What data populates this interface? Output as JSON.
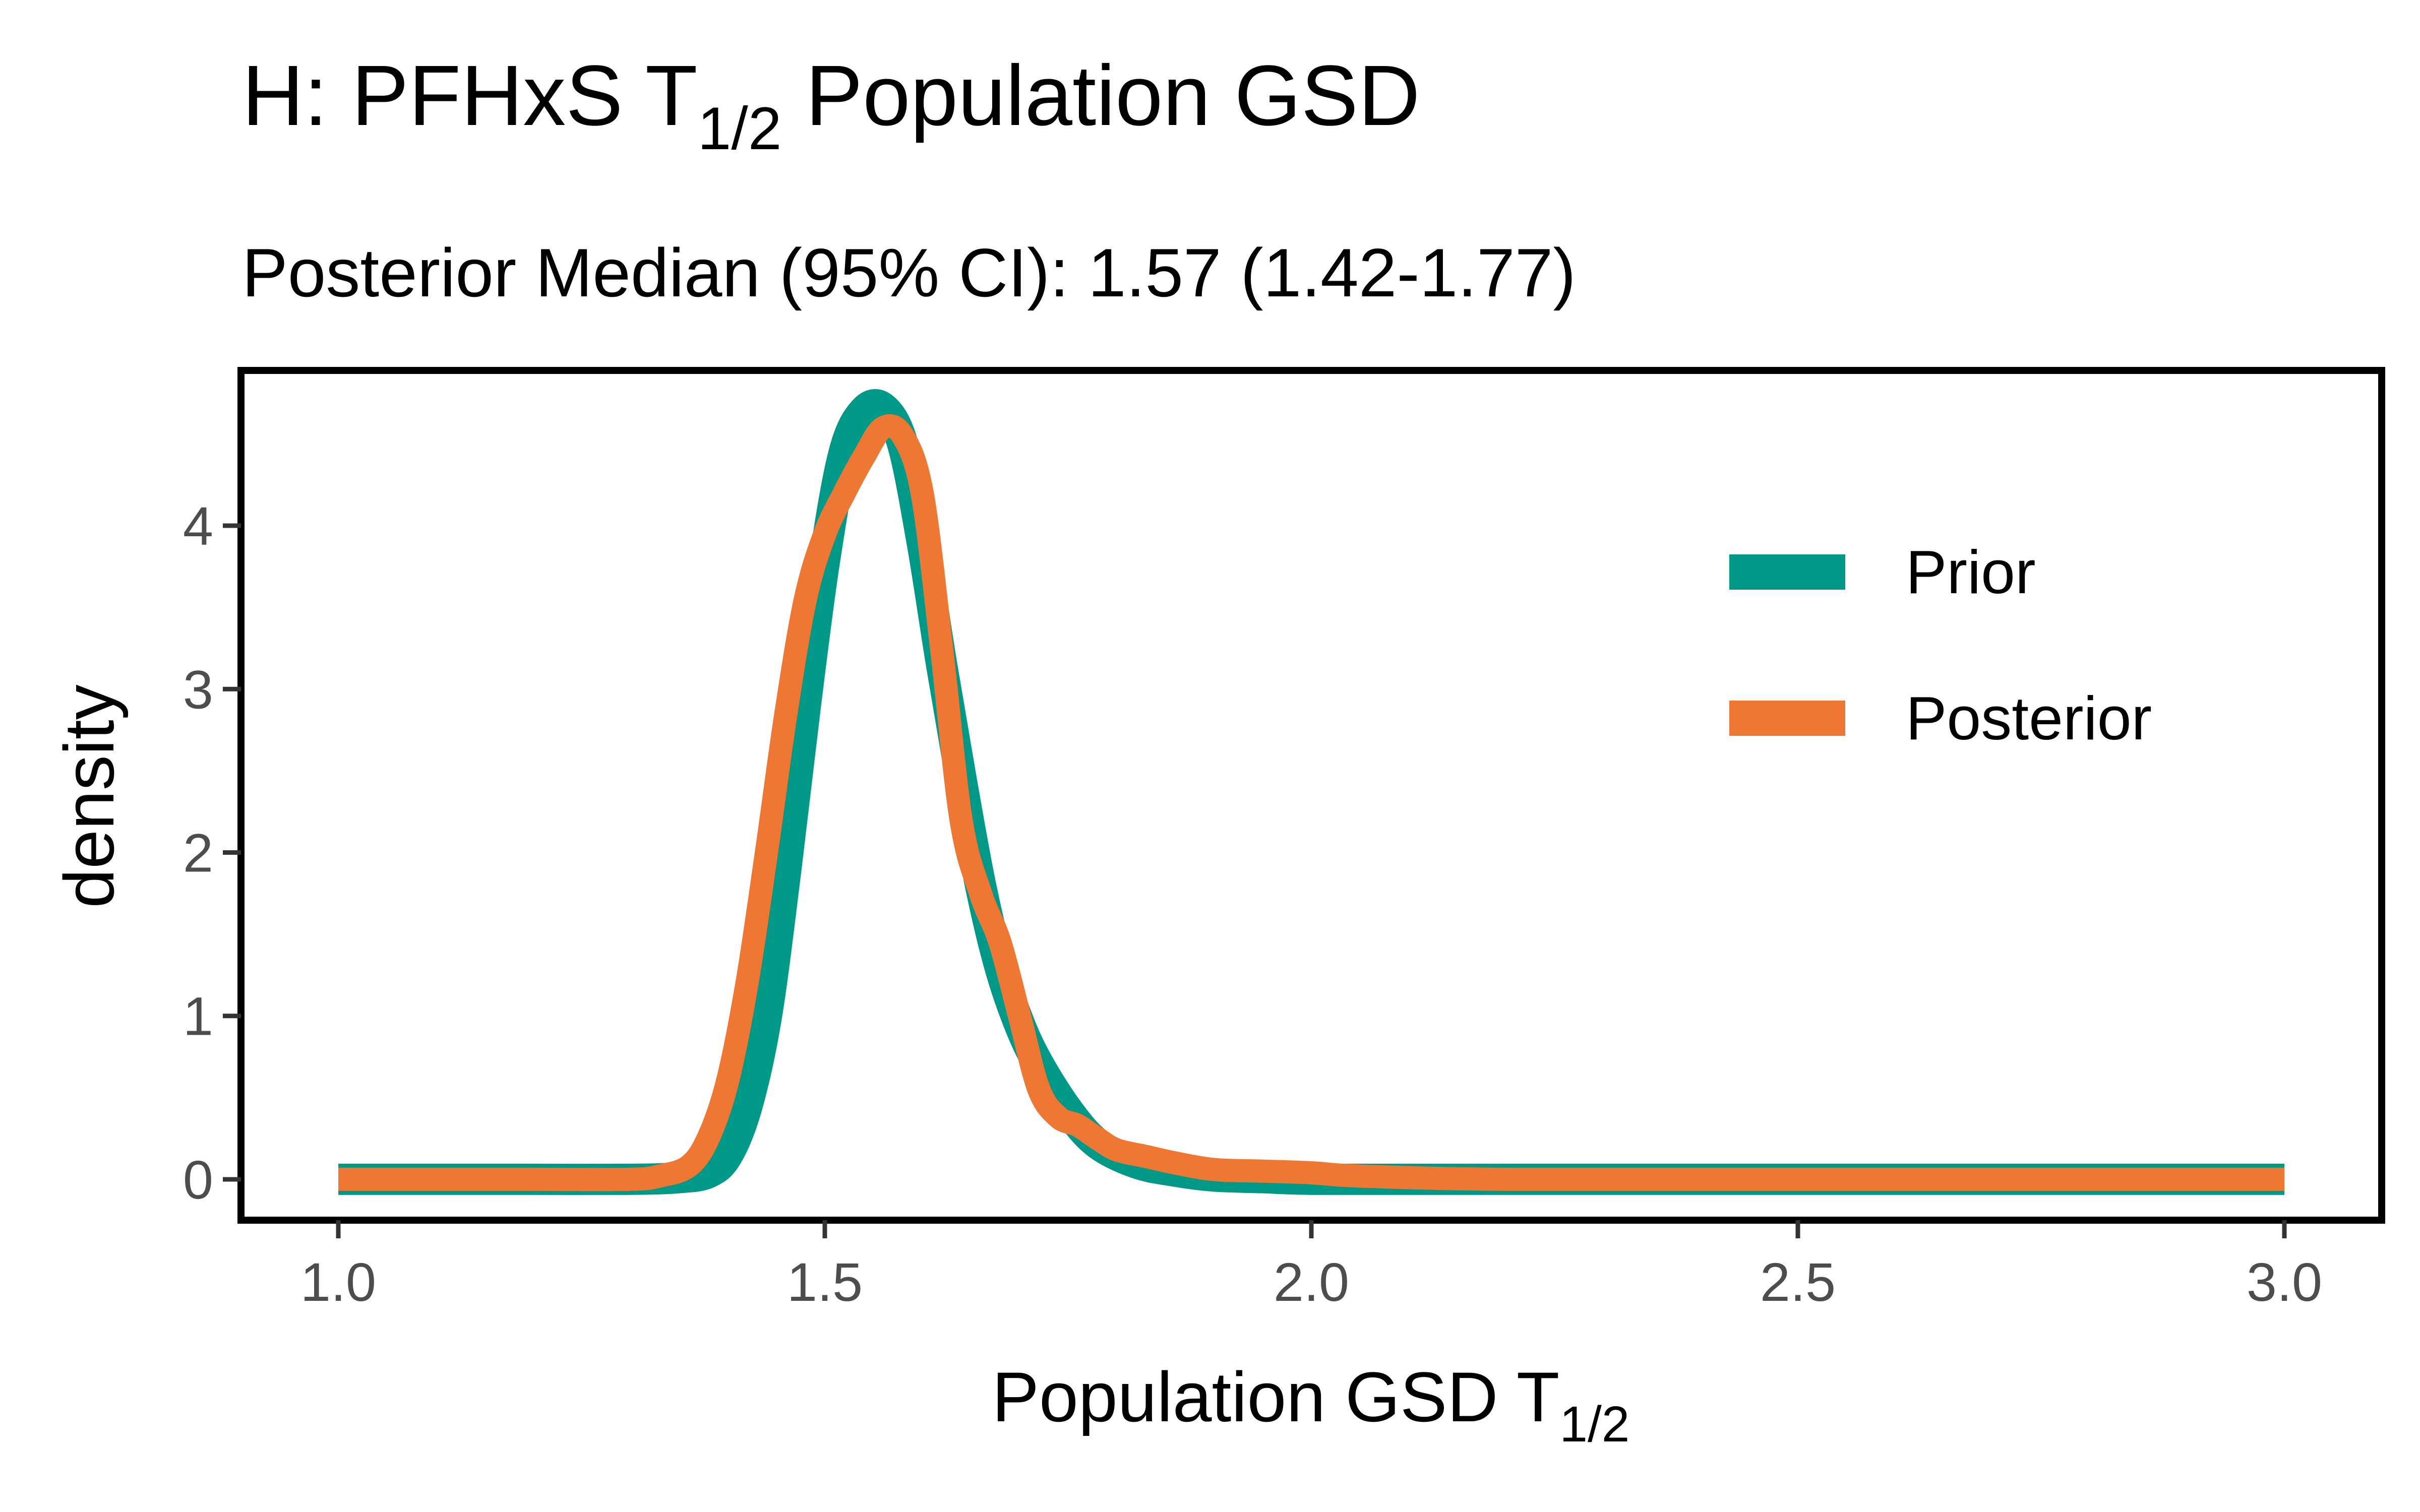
{
  "header": {
    "title_main": "H: PFHxS T",
    "title_sub": "1/2",
    "title_rest": " Population GSD",
    "subtitle": "Posterior Median (95% CI): 1.57 (1.42-1.77)"
  },
  "chart_data": {
    "type": "line",
    "title": "H: PFHxS T1/2 Population GSD",
    "subtitle": "Posterior Median (95% CI): 1.57 (1.42-1.77)",
    "xlabel": "Population GSD T1/2",
    "xlabel_parts": {
      "main": "Population GSD T",
      "sub": "1/2"
    },
    "ylabel": "density",
    "xlim": [
      0.9,
      3.1
    ],
    "ylim": [
      -0.25,
      4.95
    ],
    "x_ticks": [
      1.0,
      1.5,
      2.0,
      2.5,
      3.0
    ],
    "x_tick_labels": [
      "1.0",
      "1.5",
      "2.0",
      "2.5",
      "3.0"
    ],
    "y_ticks": [
      0,
      1,
      2,
      3,
      4
    ],
    "y_tick_labels": [
      "0",
      "1",
      "2",
      "3",
      "4"
    ],
    "grid": false,
    "legend_position": "top-right",
    "series": [
      {
        "name": "Prior",
        "color": "#009988",
        "x": [
          1.0,
          1.1,
          1.2,
          1.3,
          1.35,
          1.38,
          1.4,
          1.42,
          1.44,
          1.46,
          1.48,
          1.5,
          1.52,
          1.54,
          1.56,
          1.58,
          1.6,
          1.62,
          1.64,
          1.66,
          1.68,
          1.7,
          1.72,
          1.75,
          1.78,
          1.82,
          1.86,
          1.9,
          1.95,
          2.0,
          2.1,
          2.3,
          2.5,
          2.7,
          3.0
        ],
        "y": [
          0,
          0,
          0,
          0,
          0.01,
          0.04,
          0.15,
          0.45,
          1.0,
          1.9,
          2.9,
          3.8,
          4.45,
          4.7,
          4.72,
          4.5,
          3.9,
          3.15,
          2.45,
          1.8,
          1.3,
          0.95,
          0.7,
          0.42,
          0.22,
          0.1,
          0.05,
          0.02,
          0.01,
          0.0,
          0,
          0,
          0,
          0,
          0
        ]
      },
      {
        "name": "Posterior",
        "color": "#EE7733",
        "x": [
          1.0,
          1.1,
          1.2,
          1.3,
          1.33,
          1.36,
          1.38,
          1.4,
          1.42,
          1.44,
          1.46,
          1.48,
          1.5,
          1.52,
          1.54,
          1.56,
          1.58,
          1.6,
          1.62,
          1.64,
          1.66,
          1.68,
          1.7,
          1.72,
          1.74,
          1.76,
          1.78,
          1.8,
          1.83,
          1.86,
          1.9,
          1.95,
          2.0,
          2.05,
          2.2,
          2.5,
          3.0
        ],
        "y": [
          0,
          0,
          0,
          0,
          0.02,
          0.08,
          0.25,
          0.6,
          1.2,
          2.0,
          2.85,
          3.55,
          3.95,
          4.2,
          4.42,
          4.6,
          4.55,
          4.2,
          3.25,
          2.2,
          1.75,
          1.45,
          1.0,
          0.55,
          0.38,
          0.33,
          0.25,
          0.18,
          0.14,
          0.1,
          0.06,
          0.05,
          0.04,
          0.02,
          0,
          0,
          0
        ]
      }
    ]
  }
}
